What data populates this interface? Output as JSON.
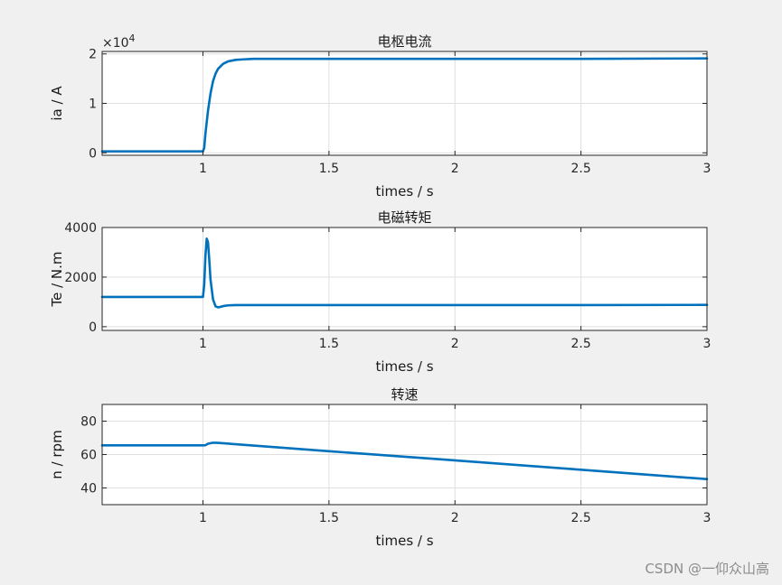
{
  "watermark": "CSDN @一仰众山高",
  "colors": {
    "line": "#0072bd",
    "grid": "#dfdfdf",
    "axis": "#262626",
    "background": "#f0f0f0",
    "plot_background": "#ffffff"
  },
  "chart_data": [
    {
      "type": "line",
      "title": "电枢电流",
      "xlabel": "times / s",
      "ylabel": "ia / A",
      "y_exponent_label": "×10",
      "y_exponent_power": "4",
      "xlim": [
        0.6,
        3
      ],
      "ylim": [
        -0.05,
        2.05
      ],
      "xticks": [
        1,
        1.5,
        2,
        2.5,
        3
      ],
      "xticklabels": [
        "1",
        "1.5",
        "2",
        "2.5",
        "3"
      ],
      "yticks": [
        0,
        1,
        2
      ],
      "yticklabels": [
        "0",
        "1",
        "2"
      ],
      "grid": true,
      "series": [
        {
          "x": [
            0.6,
            0.9,
            1.0,
            1.005,
            1.01,
            1.02,
            1.03,
            1.04,
            1.05,
            1.06,
            1.08,
            1.1,
            1.13,
            1.16,
            1.2,
            1.3,
            1.5,
            2.0,
            2.5,
            3.0
          ],
          "values": [
            0.03,
            0.03,
            0.03,
            0.1,
            0.4,
            0.85,
            1.2,
            1.45,
            1.6,
            1.7,
            1.8,
            1.85,
            1.88,
            1.89,
            1.9,
            1.9,
            1.9,
            1.9,
            1.9,
            1.91
          ]
        }
      ]
    },
    {
      "type": "line",
      "title": "电磁转矩",
      "xlabel": "times / s",
      "ylabel": "Te / N.m",
      "xlim": [
        0.6,
        3
      ],
      "ylim": [
        -150,
        4000
      ],
      "xticks": [
        1,
        1.5,
        2,
        2.5,
        3
      ],
      "xticklabels": [
        "1",
        "1.5",
        "2",
        "2.5",
        "3"
      ],
      "yticks": [
        0,
        2000,
        4000
      ],
      "yticklabels": [
        "0",
        "2000",
        "4000"
      ],
      "grid": true,
      "series": [
        {
          "x": [
            0.6,
            0.9,
            1.0,
            1.005,
            1.01,
            1.015,
            1.02,
            1.025,
            1.03,
            1.04,
            1.05,
            1.06,
            1.07,
            1.08,
            1.1,
            1.13,
            1.2,
            1.5,
            2.0,
            2.5,
            3.0
          ],
          "values": [
            1200,
            1200,
            1200,
            1700,
            2900,
            3550,
            3400,
            2700,
            1900,
            1100,
            820,
            780,
            800,
            830,
            860,
            870,
            870,
            870,
            870,
            870,
            880
          ]
        }
      ]
    },
    {
      "type": "line",
      "title": "转速",
      "xlabel": "times / s",
      "ylabel": "n / rpm",
      "xlim": [
        0.6,
        3
      ],
      "ylim": [
        30,
        90
      ],
      "xticks": [
        1,
        1.5,
        2,
        2.5,
        3
      ],
      "xticklabels": [
        "1",
        "1.5",
        "2",
        "2.5",
        "3"
      ],
      "yticks": [
        40,
        60,
        80
      ],
      "yticklabels": [
        "40",
        "60",
        "80"
      ],
      "grid": true,
      "series": [
        {
          "x": [
            0.6,
            0.9,
            1.0,
            1.01,
            1.02,
            1.04,
            1.06,
            1.5,
            2.0,
            2.5,
            3.0
          ],
          "values": [
            65.5,
            65.5,
            65.5,
            65.6,
            66.5,
            67.1,
            67.0,
            62.0,
            56.5,
            50.9,
            45.3
          ]
        }
      ]
    }
  ]
}
